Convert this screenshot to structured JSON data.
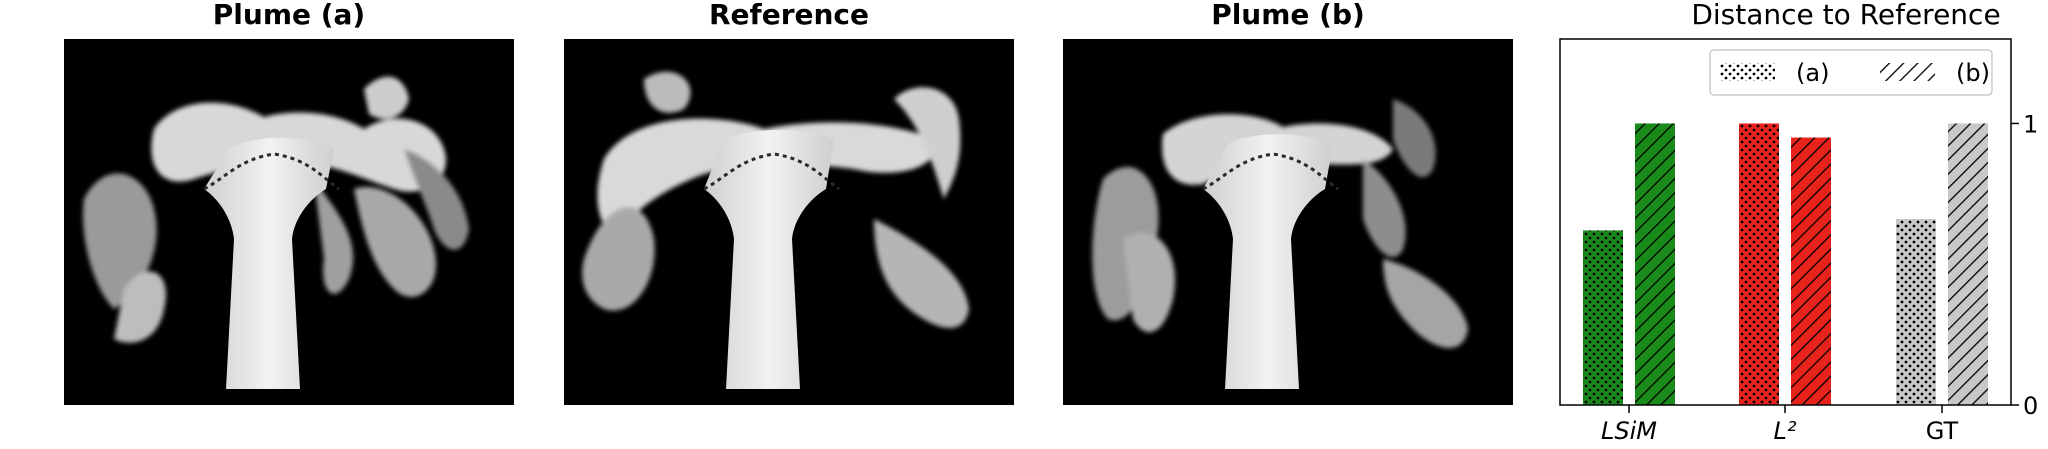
{
  "panels": [
    {
      "title": "Plume (a)"
    },
    {
      "title": "Reference"
    },
    {
      "title": "Plume (b)"
    }
  ],
  "chart_data": {
    "type": "bar",
    "title": "Distance to Reference",
    "categories": [
      "LSiM",
      "L²",
      "GT"
    ],
    "series": [
      {
        "name": "(a)",
        "pattern": "dots",
        "values": [
          0.62,
          1.0,
          0.66
        ]
      },
      {
        "name": "(b)",
        "pattern": "hatch",
        "values": [
          1.0,
          0.95,
          1.0
        ]
      }
    ],
    "category_colors": [
      "#1a8a1a",
      "#e8231c",
      "#c8c8c8"
    ],
    "yticks": [
      0,
      1
    ],
    "ylim": [
      0,
      1.3
    ],
    "legend": "top-right",
    "grid": false
  }
}
